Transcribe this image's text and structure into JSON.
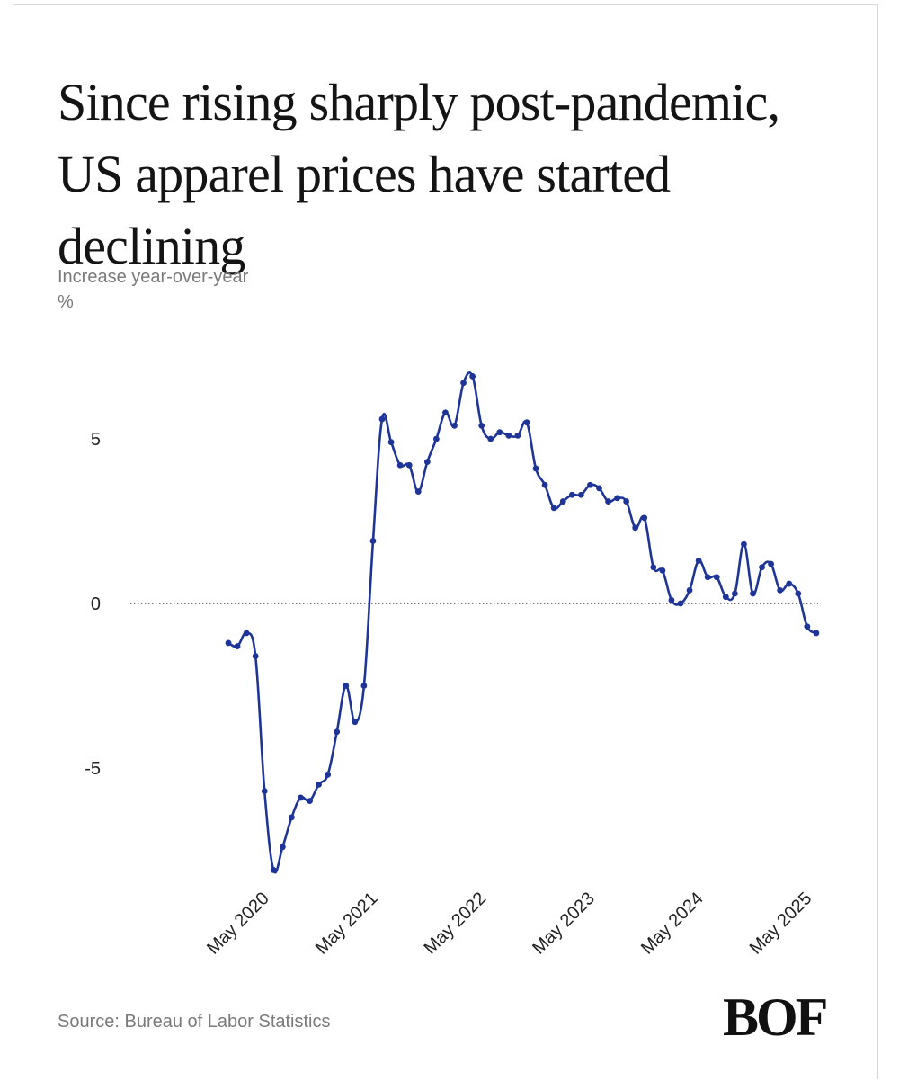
{
  "title": "Since rising sharply post-pandemic, US apparel prices have started declining",
  "subtitle": "Increase year-over-year",
  "unit": "%",
  "source": "Source: Bureau of Labor Statistics",
  "logo_text": "BOF",
  "colors": {
    "line": "#1e3597",
    "text": "#141414",
    "muted": "#7a7a7a",
    "zero_line": "#333333"
  },
  "chart_data": {
    "type": "line",
    "title": "Since rising sharply post-pandemic, US apparel prices have started declining",
    "ylabel": "Increase year-over-year %",
    "xlabel": "",
    "ylim": [
      -8.5,
      7.5
    ],
    "yticks": [
      5,
      0,
      -5
    ],
    "ytick_labels": [
      "5",
      "0",
      "-5"
    ],
    "xtick_labels": [
      "May 2020",
      "May 2021",
      "May 2022",
      "May 2023",
      "May 2024",
      "May 2025"
    ],
    "xtick_dates": [
      "2020-05",
      "2021-05",
      "2022-05",
      "2023-05",
      "2024-05",
      "2025-05"
    ],
    "zero_line": "dotted",
    "grid": false,
    "markers": true,
    "series": [
      {
        "x": [
          "2020-01",
          "2020-02",
          "2020-03",
          "2020-04",
          "2020-05",
          "2020-06",
          "2020-07",
          "2020-08",
          "2020-09",
          "2020-10",
          "2020-11",
          "2020-12",
          "2021-01",
          "2021-02",
          "2021-03",
          "2021-04",
          "2021-05",
          "2021-06",
          "2021-07",
          "2021-08",
          "2021-09",
          "2021-10",
          "2021-11",
          "2021-12",
          "2022-01",
          "2022-02",
          "2022-03",
          "2022-04",
          "2022-05",
          "2022-06",
          "2022-07",
          "2022-08",
          "2022-09",
          "2022-10",
          "2022-11",
          "2022-12",
          "2023-01",
          "2023-02",
          "2023-03",
          "2023-04",
          "2023-05",
          "2023-06",
          "2023-07",
          "2023-08",
          "2023-09",
          "2023-10",
          "2023-11",
          "2023-12",
          "2024-01",
          "2024-02",
          "2024-03",
          "2024-04",
          "2024-05",
          "2024-06",
          "2024-07",
          "2024-08",
          "2024-09",
          "2024-10",
          "2024-11",
          "2024-12",
          "2025-01",
          "2025-02",
          "2025-03",
          "2025-04",
          "2025-05",
          "2025-06"
        ],
        "values": [
          -1.2,
          -1.3,
          -0.9,
          -1.6,
          -5.7,
          -8.1,
          -7.4,
          -6.5,
          -5.9,
          -6.0,
          -5.5,
          -5.2,
          -3.9,
          -2.5,
          -3.6,
          -2.5,
          1.9,
          5.6,
          4.9,
          4.2,
          4.2,
          3.4,
          4.3,
          5.0,
          5.8,
          5.4,
          6.7,
          6.9,
          5.4,
          5.0,
          5.2,
          5.1,
          5.1,
          5.5,
          4.1,
          3.6,
          2.9,
          3.1,
          3.3,
          3.3,
          3.6,
          3.5,
          3.1,
          3.2,
          3.1,
          2.3,
          2.6,
          1.1,
          1.0,
          0.1,
          0.0,
          0.4,
          1.3,
          0.8,
          0.8,
          0.2,
          0.3,
          1.8,
          0.3,
          1.1,
          1.2,
          0.4,
          0.6,
          0.3,
          -0.7,
          -0.9
        ]
      }
    ]
  }
}
